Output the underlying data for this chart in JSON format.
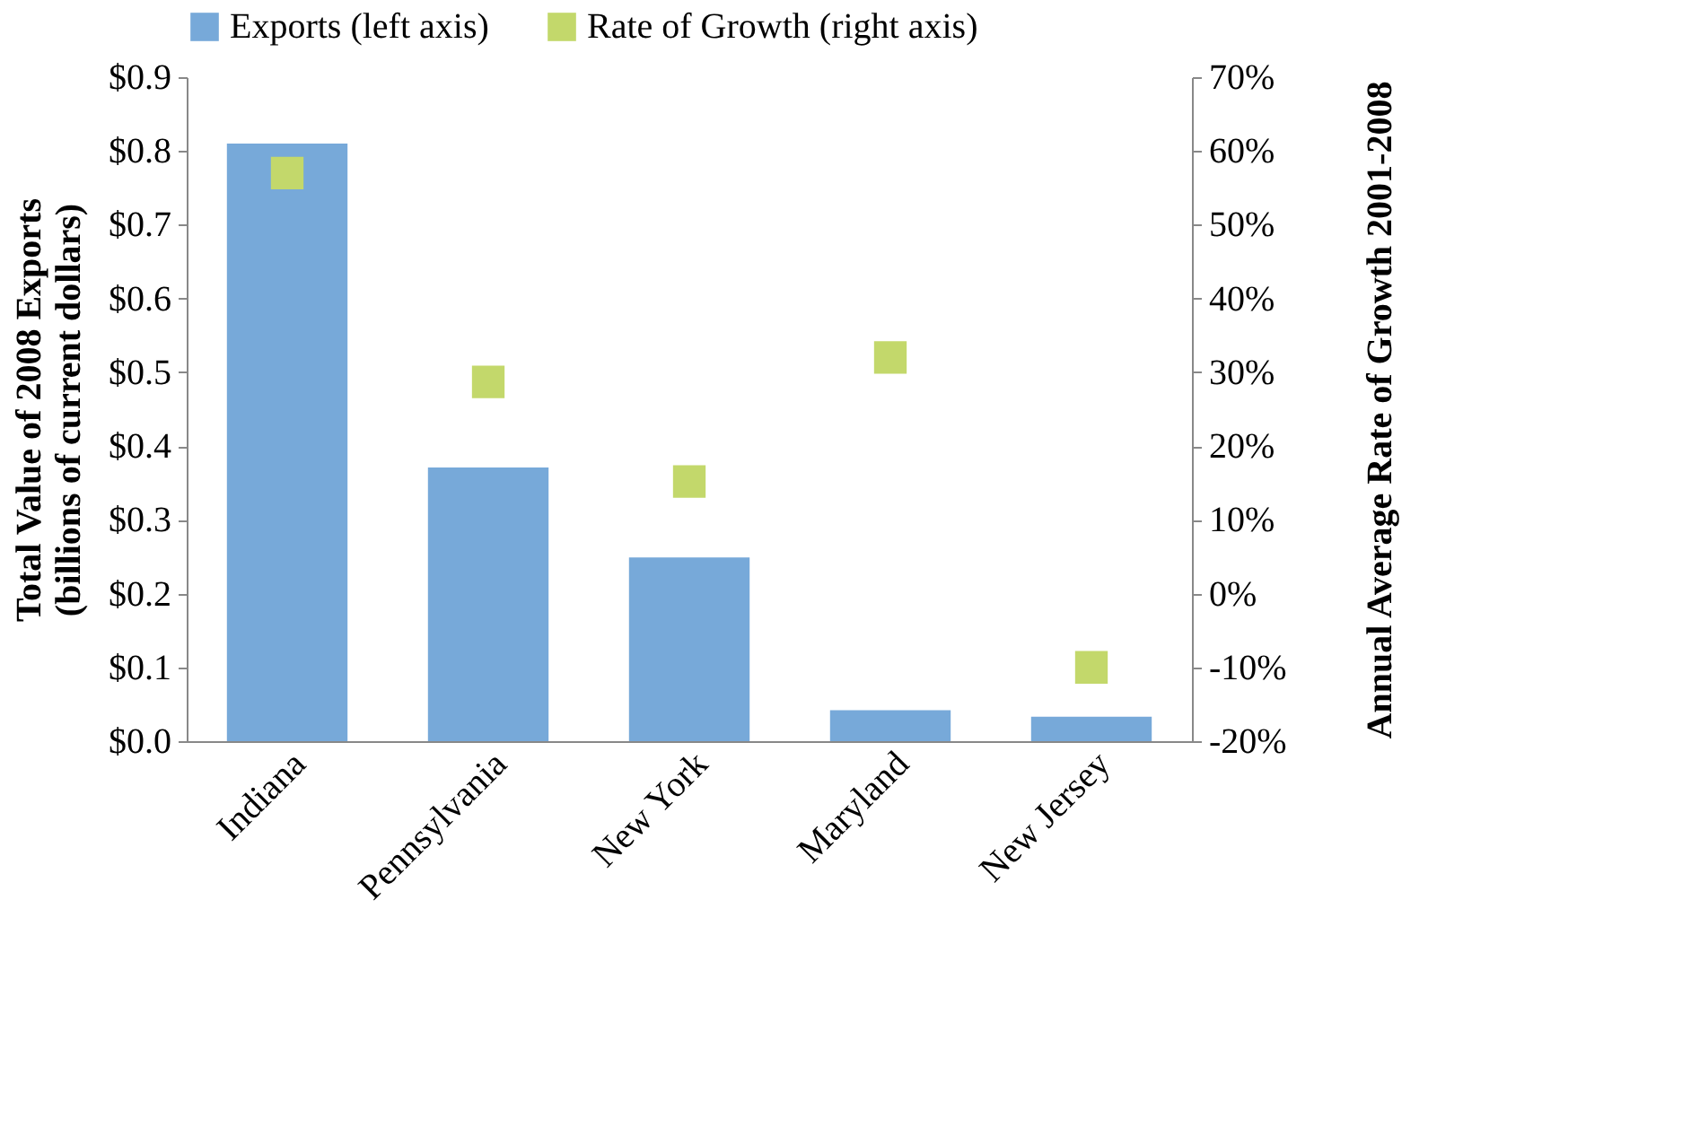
{
  "chart_data": {
    "type": "bar",
    "categories": [
      "Indiana",
      "Pennsylvania",
      "New York",
      "Maryland",
      "New Jersey"
    ],
    "ylabel": "Total Value of 2008 Exports\n(billions of current dollars)",
    "y2label": "Annual Average Rate of Growth 2001-2008",
    "series": [
      {
        "name": "Exports (left axis)",
        "type": "bar",
        "color": "#77a9d9",
        "values": [
          0.81,
          0.371,
          0.249,
          0.042,
          0.033
        ]
      },
      {
        "name": "Rate of Growth (right axis)",
        "type": "scatter",
        "axis": "y2",
        "color": "#c3d86b",
        "values": [
          57,
          28.7,
          15.2,
          32,
          -10
        ]
      }
    ],
    "ylim": [
      0,
      0.9
    ],
    "yticks": [
      {
        "value": 0,
        "label": "$0.0"
      },
      {
        "value": 0.1,
        "label": "$0.1"
      },
      {
        "value": 0.2,
        "label": "$0.2"
      },
      {
        "value": 0.3,
        "label": "$0.3"
      },
      {
        "value": 0.4,
        "label": "$0.4"
      },
      {
        "value": 0.5,
        "label": "$0.5"
      },
      {
        "value": 0.6,
        "label": "$0.6"
      },
      {
        "value": 0.7,
        "label": "$0.7"
      },
      {
        "value": 0.8,
        "label": "$0.8"
      },
      {
        "value": 0.9,
        "label": "$0.9"
      }
    ],
    "y2lim": [
      -20,
      70
    ],
    "y2ticks": [
      {
        "value": -20,
        "label": "-20%"
      },
      {
        "value": -10,
        "label": "-10%"
      },
      {
        "value": 0,
        "label": "0%"
      },
      {
        "value": 10,
        "label": "10%"
      },
      {
        "value": 20,
        "label": "20%"
      },
      {
        "value": 30,
        "label": "30%"
      },
      {
        "value": 40,
        "label": "40%"
      },
      {
        "value": 50,
        "label": "50%"
      },
      {
        "value": 60,
        "label": "60%"
      },
      {
        "value": 70,
        "label": "70%"
      }
    ],
    "marker": "square",
    "legend": "top",
    "grid": false
  }
}
